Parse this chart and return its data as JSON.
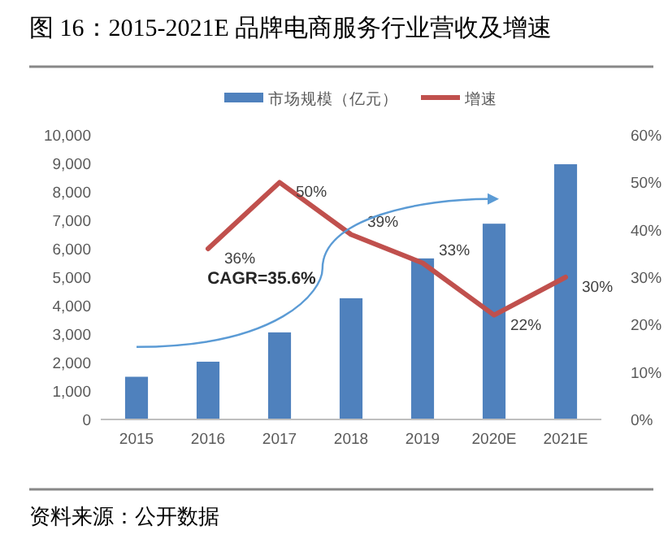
{
  "chart_data": {
    "type": "bar",
    "title": "图 16：2015-2021E 品牌电商服务行业营收及增速",
    "annotations": [
      "CAGR=35.6%",
      "资料来源：公开数据"
    ],
    "categories": [
      "2015",
      "2016",
      "2017",
      "2018",
      "2019",
      "2020E",
      "2021E"
    ],
    "series": [
      {
        "name": "市场规模（亿元）",
        "type": "bar",
        "color": "#4f81bd",
        "values": [
          1500,
          2030,
          3060,
          4260,
          5660,
          6880,
          8970
        ]
      },
      {
        "name": "增速",
        "type": "line",
        "axis": "y2",
        "color": "#c0504d",
        "values": [
          null,
          36,
          50,
          39,
          33,
          22,
          30
        ],
        "value_labels": [
          null,
          "36%",
          "50%",
          "39%",
          "33%",
          "22%",
          "30%"
        ]
      }
    ],
    "ylim": [
      0,
      10000
    ],
    "yticks": [
      {
        "value": 0,
        "label": "0"
      },
      {
        "value": 1000,
        "label": "1,000"
      },
      {
        "value": 2000,
        "label": "2,000"
      },
      {
        "value": 3000,
        "label": "3,000"
      },
      {
        "value": 4000,
        "label": "4,000"
      },
      {
        "value": 5000,
        "label": "5,000"
      },
      {
        "value": 6000,
        "label": "6,000"
      },
      {
        "value": 7000,
        "label": "7,000"
      },
      {
        "value": 8000,
        "label": "8,000"
      },
      {
        "value": 9000,
        "label": "9,000"
      },
      {
        "value": 10000,
        "label": "10,000"
      }
    ],
    "y2lim": [
      0,
      60
    ],
    "y2ticks": [
      {
        "value": 0,
        "label": "0%"
      },
      {
        "value": 10,
        "label": "10%"
      },
      {
        "value": 20,
        "label": "20%"
      },
      {
        "value": 30,
        "label": "30%"
      },
      {
        "value": 40,
        "label": "40%"
      },
      {
        "value": 50,
        "label": "50%"
      },
      {
        "value": 60,
        "label": "60%"
      }
    ],
    "legend": "top",
    "grid": false
  }
}
